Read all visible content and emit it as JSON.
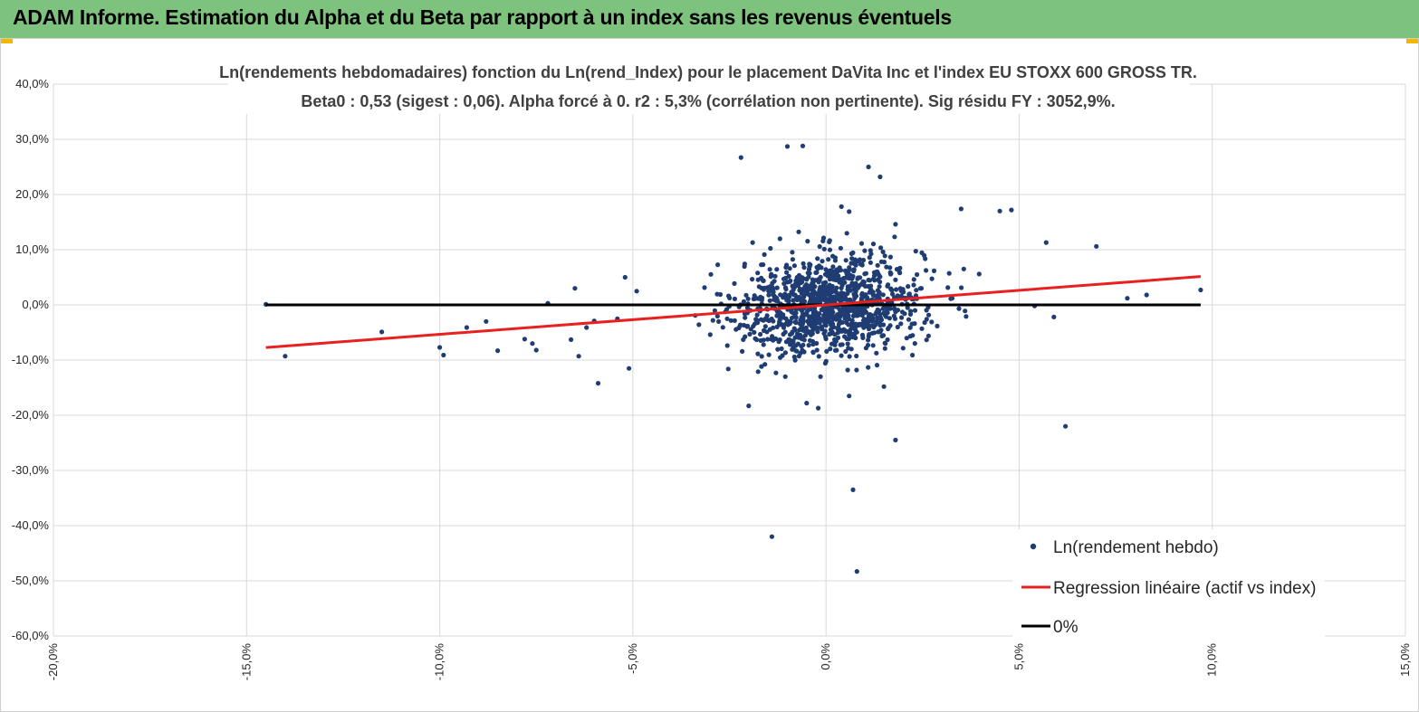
{
  "header": {
    "title": "ADAM Informe. Estimation du Alpha et du Beta par rapport à un index sans les revenus éventuels"
  },
  "colors": {
    "header_bg": "#7ec37d",
    "points": "#1f3d73",
    "regression": "#e8201f",
    "zero_line": "#000000",
    "grid": "#d9d9d9"
  },
  "chart_data": {
    "type": "scatter",
    "title": "Ln(rendements hebdomadaires) fonction du Ln(rend_Index)  pour le placement DaVita Inc et l'index EU STOXX 600 GROSS TR.",
    "subtitle": "Beta0 : 0,53  (sigest : 0,06).  Alpha forcé à 0. r2 : 5,3% (corrélation non pertinente). Sig résidu FY : 3052,9%.",
    "xlim": [
      -0.2,
      0.15
    ],
    "ylim": [
      -0.6,
      0.4
    ],
    "x_ticks": [
      "-20,0%",
      "-15,0%",
      "-10,0%",
      "-5,0%",
      "0,0%",
      "5,0%",
      "10,0%",
      "15,0%"
    ],
    "y_ticks": [
      "40,0%",
      "30,0%",
      "20,0%",
      "10,0%",
      "0,0%",
      "-10,0%",
      "-20,0%",
      "-30,0%",
      "-40,0%",
      "-50,0%",
      "-60,0%"
    ],
    "grid": true,
    "legend_position": "bottom-right",
    "legend": [
      "Ln(rendement hebdo)",
      "Regression linéaire (actif vs index)",
      "0%"
    ],
    "series": [
      {
        "name": "Ln(rendement hebdo)",
        "kind": "points",
        "outliers": [
          [
            -0.145,
            0.001
          ],
          [
            -0.14,
            -0.093
          ],
          [
            -0.115,
            -0.049
          ],
          [
            -0.1,
            -0.077
          ],
          [
            -0.099,
            -0.091
          ],
          [
            -0.093,
            -0.041
          ],
          [
            -0.088,
            -0.03
          ],
          [
            -0.085,
            -0.083
          ],
          [
            -0.078,
            -0.062
          ],
          [
            -0.076,
            -0.07
          ],
          [
            -0.075,
            -0.082
          ],
          [
            -0.072,
            0.003
          ],
          [
            -0.066,
            -0.063
          ],
          [
            -0.065,
            0.03
          ],
          [
            -0.064,
            -0.093
          ],
          [
            -0.062,
            -0.041
          ],
          [
            -0.06,
            -0.029
          ],
          [
            -0.059,
            -0.142
          ],
          [
            -0.054,
            -0.025
          ],
          [
            -0.052,
            0.05
          ],
          [
            -0.051,
            -0.115
          ],
          [
            -0.049,
            0.025
          ],
          [
            -0.022,
            0.267
          ],
          [
            -0.02,
            -0.183
          ],
          [
            -0.019,
            0.113
          ],
          [
            -0.014,
            -0.42
          ],
          [
            -0.01,
            0.287
          ],
          [
            -0.006,
            0.288
          ],
          [
            -0.005,
            -0.178
          ],
          [
            -0.002,
            -0.187
          ],
          [
            0.004,
            0.178
          ],
          [
            0.006,
            0.169
          ],
          [
            0.006,
            -0.165
          ],
          [
            0.007,
            -0.335
          ],
          [
            0.008,
            -0.483
          ],
          [
            0.011,
            0.25
          ],
          [
            0.014,
            0.232
          ],
          [
            0.015,
            -0.148
          ],
          [
            0.018,
            0.146
          ],
          [
            0.018,
            -0.245
          ],
          [
            0.035,
            0.174
          ],
          [
            0.045,
            0.17
          ],
          [
            0.048,
            0.172
          ],
          [
            0.054,
            -0.002
          ],
          [
            0.057,
            0.113
          ],
          [
            0.059,
            -0.022
          ],
          [
            0.062,
            -0.22
          ],
          [
            0.07,
            0.106
          ],
          [
            0.078,
            0.012
          ],
          [
            0.083,
            0.018
          ],
          [
            0.097,
            0.027
          ]
        ],
        "cluster": {
          "count": 1150,
          "x_mean": 0.001,
          "x_sd": 0.012,
          "y_beta": 0.53,
          "y_resid_sd": 0.045
        }
      },
      {
        "name": "Regression linéaire (actif vs index)",
        "kind": "line",
        "x": [
          -0.145,
          0.097
        ],
        "y": [
          -0.0773,
          0.0514
        ]
      },
      {
        "name": "0%",
        "kind": "line",
        "x": [
          -0.145,
          0.097
        ],
        "y": [
          0,
          0
        ]
      }
    ]
  }
}
